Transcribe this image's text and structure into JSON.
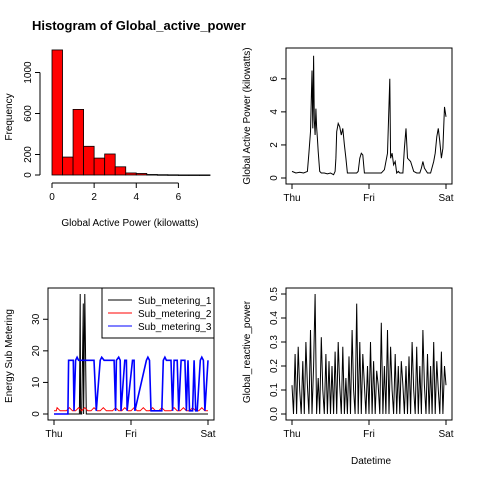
{
  "chart_data": [
    {
      "type": "bar",
      "title": "Histogram of Global_active_power",
      "xlabel": "Global Active Power (kilowatts)",
      "ylabel": "Frequency",
      "xlim": [
        0,
        7.5
      ],
      "ylim": [
        0,
        1200
      ],
      "x_ticks": [
        "0",
        "2",
        "4",
        "6"
      ],
      "x_tick_values": [
        0,
        2,
        4,
        6
      ],
      "y_ticks": [
        "0",
        "200",
        "600",
        "1000"
      ],
      "y_tick_values": [
        0,
        200,
        600,
        1000
      ],
      "bin_width": 0.5,
      "bin_starts": [
        0,
        0.5,
        1,
        1.5,
        2,
        2.5,
        3,
        3.5,
        4,
        4.5,
        5,
        5.5,
        6,
        6.5,
        7
      ],
      "values": [
        1220,
        175,
        640,
        280,
        165,
        205,
        80,
        20,
        15,
        5,
        3,
        2,
        1,
        1,
        1
      ],
      "bar_color": "#ff0000"
    },
    {
      "type": "line",
      "title": "",
      "xlabel": "",
      "ylabel": "Global Active Power (kilowatts)",
      "xlim": [
        0,
        2
      ],
      "ylim": [
        0,
        7.5
      ],
      "x_ticks": [
        "Thu",
        "Fri",
        "Sat"
      ],
      "x_tick_values": [
        0,
        1,
        2
      ],
      "y_ticks": [
        "0",
        "2",
        "4",
        "6"
      ],
      "y_tick_values": [
        0,
        2,
        4,
        6
      ],
      "series": [
        {
          "x": [
            0,
            0.05,
            0.1,
            0.15,
            0.2,
            0.22,
            0.24,
            0.26,
            0.27,
            0.28,
            0.29,
            0.3,
            0.31,
            0.32,
            0.33,
            0.34,
            0.36,
            0.38,
            0.42,
            0.46,
            0.5,
            0.54,
            0.56,
            0.57,
            0.58,
            0.6,
            0.62,
            0.64,
            0.66,
            0.68,
            0.7,
            0.72,
            0.76,
            0.8,
            0.84,
            0.86,
            0.88,
            0.9,
            0.92,
            0.94,
            0.96,
            1.0,
            1.04,
            1.08,
            1.12,
            1.16,
            1.2,
            1.24,
            1.27,
            1.28,
            1.3,
            1.32,
            1.34,
            1.36,
            1.38,
            1.4,
            1.42,
            1.44,
            1.46,
            1.48,
            1.5,
            1.54,
            1.58,
            1.62,
            1.66,
            1.68,
            1.7,
            1.72,
            1.76,
            1.8,
            1.84,
            1.86,
            1.88,
            1.9,
            1.92,
            1.94,
            1.96,
            1.98,
            2.0
          ],
          "values": [
            0.4,
            0.3,
            0.35,
            0.3,
            0.4,
            1.5,
            2.8,
            6.5,
            3.0,
            7.4,
            3.5,
            2.6,
            4.2,
            3.1,
            2.4,
            1.6,
            0.4,
            0.3,
            0.3,
            0.25,
            0.3,
            0.2,
            0.4,
            1.2,
            2.8,
            3.3,
            3.1,
            2.6,
            3.0,
            2.0,
            1.2,
            0.3,
            0.3,
            0.3,
            0.3,
            0.4,
            1.2,
            1.5,
            1.4,
            0.3,
            0.3,
            0.3,
            0.3,
            0.3,
            0.3,
            0.3,
            0.5,
            1.5,
            6.0,
            1.2,
            1.5,
            0.8,
            1.0,
            0.3,
            0.4,
            0.3,
            0.3,
            0.3,
            1.8,
            3.0,
            1.2,
            1.0,
            0.4,
            0.3,
            0.3,
            0.6,
            1.0,
            0.6,
            0.3,
            0.3,
            1.0,
            1.5,
            2.5,
            3.0,
            2.2,
            1.2,
            1.8,
            4.3,
            3.7
          ],
          "color": "#000000"
        }
      ]
    },
    {
      "type": "line",
      "title": "",
      "xlabel": "",
      "ylabel": "Energy Sub Metering",
      "xlim": [
        0,
        2
      ],
      "ylim": [
        0,
        38
      ],
      "x_ticks": [
        "Thu",
        "Fri",
        "Sat"
      ],
      "x_tick_values": [
        0,
        1,
        2
      ],
      "y_ticks": [
        "0",
        "10",
        "20",
        "30"
      ],
      "y_tick_values": [
        0,
        10,
        20,
        30
      ],
      "legend_position": "top-right",
      "series": [
        {
          "name": "Sub_metering_1",
          "color": "#000000",
          "x": [
            0,
            0.3,
            0.33,
            0.34,
            0.345,
            0.36,
            0.38,
            0.385,
            0.4,
            0.42,
            0.44,
            1.0,
            1.5,
            2.0
          ],
          "values": [
            0,
            0,
            0,
            38,
            0,
            0,
            35,
            0,
            38,
            0,
            0,
            0,
            0,
            0
          ]
        },
        {
          "name": "Sub_metering_2",
          "color": "#ff0000",
          "x": [
            0,
            0.03,
            0.04,
            0.08,
            0.12,
            0.16,
            0.2,
            0.24,
            0.28,
            0.32,
            0.36,
            0.4,
            0.44,
            0.48,
            0.52,
            0.56,
            0.6,
            0.64,
            0.68,
            0.72,
            0.76,
            0.8,
            0.84,
            0.88,
            0.92,
            0.96,
            1.0,
            1.04,
            1.08,
            1.12,
            1.16,
            1.2,
            1.24,
            1.28,
            1.32,
            1.36,
            1.4,
            1.44,
            1.48,
            1.52,
            1.56,
            1.6,
            1.64,
            1.68,
            1.72,
            1.76,
            1.8,
            1.84,
            1.88,
            1.92,
            1.96,
            2.0
          ],
          "values": [
            1,
            1,
            2,
            1,
            1,
            1,
            2,
            1,
            1,
            2,
            1,
            2,
            1,
            1,
            2,
            1,
            1,
            2,
            1,
            1,
            1,
            2,
            1,
            1,
            2,
            1,
            1,
            2,
            1,
            1,
            2,
            1,
            1,
            2,
            1,
            1,
            2,
            1,
            1,
            1,
            2,
            1,
            1,
            2,
            1,
            1,
            2,
            1,
            1,
            2,
            1,
            1
          ]
        },
        {
          "name": "Sub_metering_3",
          "color": "#0000ff",
          "x": [
            0,
            0.18,
            0.19,
            0.25,
            0.26,
            0.28,
            0.3,
            0.32,
            0.4,
            0.52,
            0.55,
            0.6,
            0.62,
            0.65,
            0.68,
            0.78,
            0.8,
            0.81,
            0.84,
            0.86,
            0.87,
            0.92,
            0.94,
            0.95,
            1.02,
            1.04,
            1.05,
            1.2,
            1.22,
            1.24,
            1.26,
            1.4,
            1.42,
            1.44,
            1.46,
            1.52,
            1.54,
            1.56,
            1.6,
            1.62,
            1.65,
            1.7,
            1.72,
            1.74,
            1.76,
            1.8,
            1.82,
            1.84,
            1.86,
            1.9,
            1.92,
            1.94,
            1.96,
            2.0
          ],
          "values": [
            0,
            0,
            17,
            17,
            1,
            17,
            18,
            17,
            17,
            17,
            1,
            17,
            18,
            17,
            17,
            17,
            1,
            17,
            18,
            17,
            1,
            17,
            17,
            1,
            17,
            17,
            1,
            17,
            18,
            17,
            1,
            1,
            17,
            18,
            17,
            17,
            1,
            17,
            17,
            1,
            17,
            17,
            1,
            17,
            1,
            1,
            17,
            1,
            1,
            17,
            18,
            17,
            1,
            17
          ]
        }
      ]
    },
    {
      "type": "line",
      "title": "",
      "xlabel": "Datetime",
      "ylabel": "Global_reactive_power",
      "xlim": [
        0,
        2
      ],
      "ylim": [
        0,
        0.5
      ],
      "x_ticks": [
        "Thu",
        "Fri",
        "Sat"
      ],
      "x_tick_values": [
        0,
        1,
        2
      ],
      "y_ticks": [
        "0.0",
        "0.1",
        "0.2",
        "0.3",
        "0.4",
        "0.5"
      ],
      "y_tick_values": [
        0,
        0.1,
        0.2,
        0.3,
        0.4,
        0.5
      ],
      "series": [
        {
          "color": "#000000",
          "x": [
            0,
            0.02,
            0.04,
            0.06,
            0.08,
            0.1,
            0.12,
            0.14,
            0.16,
            0.18,
            0.2,
            0.22,
            0.24,
            0.26,
            0.28,
            0.3,
            0.32,
            0.34,
            0.36,
            0.38,
            0.4,
            0.42,
            0.44,
            0.46,
            0.48,
            0.5,
            0.52,
            0.54,
            0.56,
            0.58,
            0.6,
            0.62,
            0.64,
            0.66,
            0.68,
            0.7,
            0.72,
            0.74,
            0.76,
            0.78,
            0.8,
            0.82,
            0.84,
            0.86,
            0.88,
            0.9,
            0.92,
            0.94,
            0.96,
            0.98,
            1.0,
            1.02,
            1.04,
            1.06,
            1.08,
            1.1,
            1.12,
            1.14,
            1.16,
            1.18,
            1.2,
            1.22,
            1.24,
            1.26,
            1.28,
            1.3,
            1.32,
            1.34,
            1.36,
            1.38,
            1.4,
            1.42,
            1.44,
            1.46,
            1.48,
            1.5,
            1.52,
            1.54,
            1.56,
            1.58,
            1.6,
            1.62,
            1.64,
            1.66,
            1.68,
            1.7,
            1.72,
            1.74,
            1.76,
            1.78,
            1.8,
            1.82,
            1.84,
            1.86,
            1.88,
            1.9,
            1.92,
            1.94,
            1.96,
            1.98,
            2.0
          ],
          "values": [
            0.12,
            0.0,
            0.25,
            0.0,
            0.28,
            0.1,
            0.0,
            0.22,
            0.0,
            0.3,
            0.12,
            0.0,
            0.35,
            0.0,
            0.2,
            0.5,
            0.0,
            0.15,
            0.0,
            0.32,
            0.1,
            0.0,
            0.25,
            0.0,
            0.22,
            0.0,
            0.2,
            0.0,
            0.26,
            0.0,
            0.3,
            0.12,
            0.0,
            0.28,
            0.0,
            0.15,
            0.0,
            0.24,
            0.0,
            0.35,
            0.1,
            0.0,
            0.46,
            0.0,
            0.3,
            0.0,
            0.25,
            0.12,
            0.0,
            0.2,
            0.0,
            0.3,
            0.0,
            0.22,
            0.0,
            0.18,
            0.12,
            0.0,
            0.38,
            0.0,
            0.2,
            0.0,
            0.35,
            0.0,
            0.28,
            0.1,
            0.0,
            0.25,
            0.0,
            0.2,
            0.0,
            0.22,
            0.12,
            0.0,
            0.2,
            0.0,
            0.24,
            0.0,
            0.3,
            0.1,
            0.0,
            0.28,
            0.0,
            0.2,
            0.0,
            0.35,
            0.12,
            0.0,
            0.25,
            0.0,
            0.2,
            0.0,
            0.3,
            0.0,
            0.22,
            0.1,
            0.0,
            0.26,
            0.0,
            0.2,
            0.12
          ]
        }
      ]
    }
  ]
}
